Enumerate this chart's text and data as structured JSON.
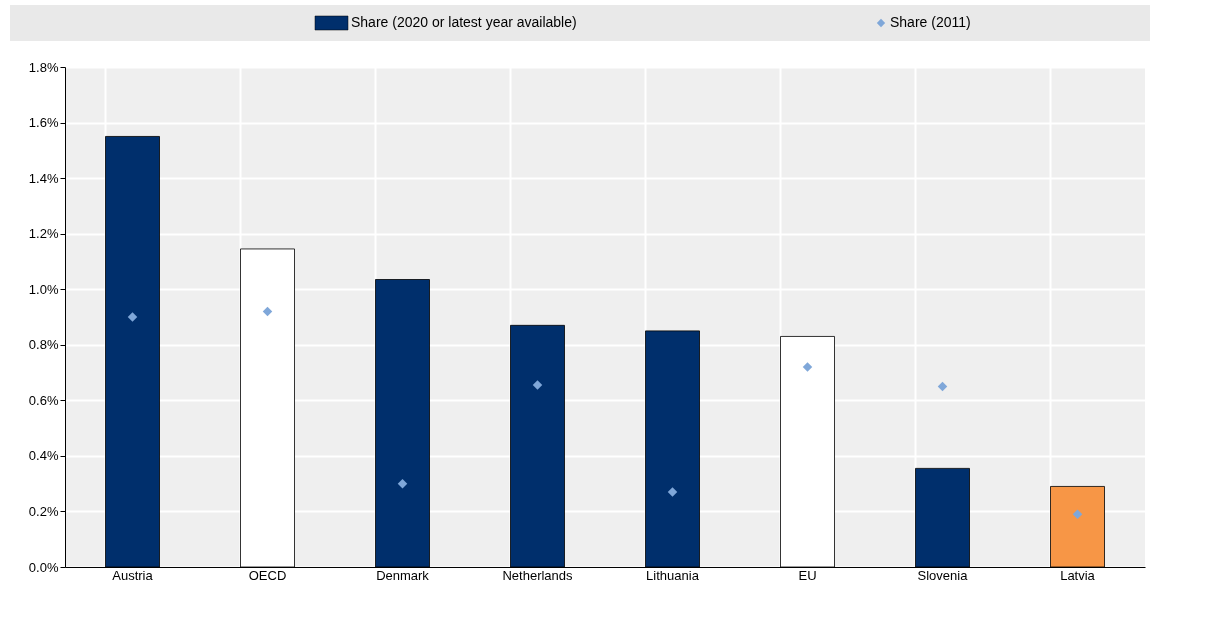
{
  "chart_data": {
    "type": "bar",
    "categories": [
      "Austria",
      "OECD",
      "Denmark",
      "Netherlands",
      "Lithuania",
      "EU",
      "Slovenia",
      "Latvia"
    ],
    "series": [
      {
        "name": "Share (2020 or latest year available)",
        "color": "#002f6c",
        "colors": [
          "#002f6c",
          "#ffffff",
          "#002f6c",
          "#002f6c",
          "#002f6c",
          "#ffffff",
          "#002f6c",
          "#f79646"
        ],
        "values": [
          1.55,
          1.145,
          1.035,
          0.87,
          0.85,
          0.83,
          0.355,
          0.29
        ]
      },
      {
        "name": "Share (2011)",
        "type": "scatter",
        "color": "#7fa7d9",
        "marker": "diamond",
        "values": [
          0.9,
          0.92,
          0.3,
          0.655,
          0.27,
          0.72,
          0.65,
          0.19
        ]
      }
    ],
    "ylim": [
      0,
      1.8
    ],
    "yticks": [
      {
        "value": 0,
        "label": "0.0%"
      },
      {
        "value": 0.2,
        "label": "0.2%"
      },
      {
        "value": 0.4,
        "label": "0.4%"
      },
      {
        "value": 0.6,
        "label": "0.6%"
      },
      {
        "value": 0.8,
        "label": "0.8%"
      },
      {
        "value": 1.0,
        "label": "1.0%"
      },
      {
        "value": 1.2,
        "label": "1.2%"
      },
      {
        "value": 1.4,
        "label": "1.4%"
      },
      {
        "value": 1.6,
        "label": "1.6%"
      },
      {
        "value": 1.8,
        "label": "1.8%"
      }
    ],
    "grid": true,
    "legend": "top"
  }
}
